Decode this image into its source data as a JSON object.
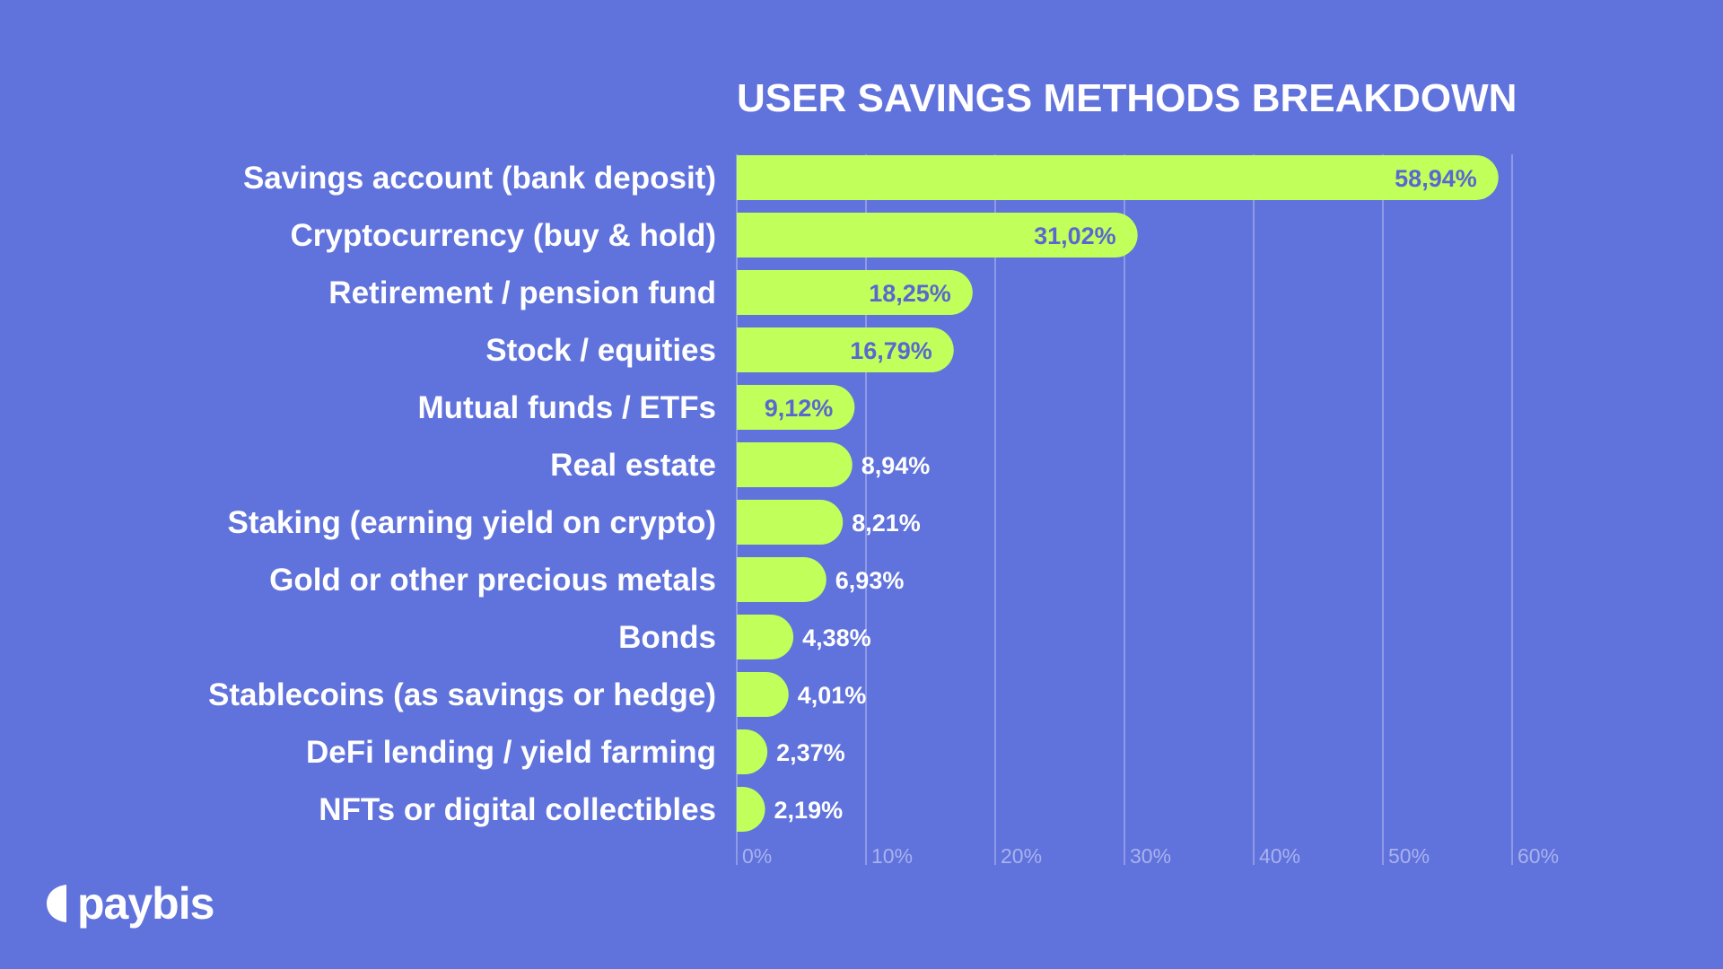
{
  "brand": {
    "name": "paybis"
  },
  "colors": {
    "background": "#6072DC",
    "bar": "#C1FF5A",
    "value_inside": "#5A67D0",
    "text": "#FFFFFF",
    "grid": "#A3ACEC"
  },
  "chart_data": {
    "type": "bar",
    "orientation": "horizontal",
    "title": "USER SAVINGS METHODS BREAKDOWN",
    "categories": [
      "Savings account (bank deposit)",
      "Cryptocurrency (buy & hold)",
      "Retirement / pension fund",
      "Stock / equities",
      "Mutual funds / ETFs",
      "Real estate",
      "Staking (earning yield on crypto)",
      "Gold or other precious metals",
      "Bonds",
      "Stablecoins (as savings or hedge)",
      "DeFi lending / yield farming",
      "NFTs or digital collectibles"
    ],
    "values": [
      58.94,
      31.02,
      18.25,
      16.79,
      9.12,
      8.94,
      8.21,
      6.93,
      4.38,
      4.01,
      2.37,
      2.19
    ],
    "value_labels": [
      "58,94%",
      "31,02%",
      "18,25%",
      "16,79%",
      "9,12%",
      "8,94%",
      "8,21%",
      "6,93%",
      "4,38%",
      "4,01%",
      "2,37%",
      "2,19%"
    ],
    "xlim": [
      0,
      60
    ],
    "x_ticks": [
      0,
      10,
      20,
      30,
      40,
      50,
      60
    ],
    "x_tick_labels": [
      "0%",
      "10%",
      "20%",
      "30%",
      "40%",
      "50%",
      "60%"
    ],
    "xlabel": "",
    "ylabel": "",
    "grid": true,
    "legend": "none"
  }
}
